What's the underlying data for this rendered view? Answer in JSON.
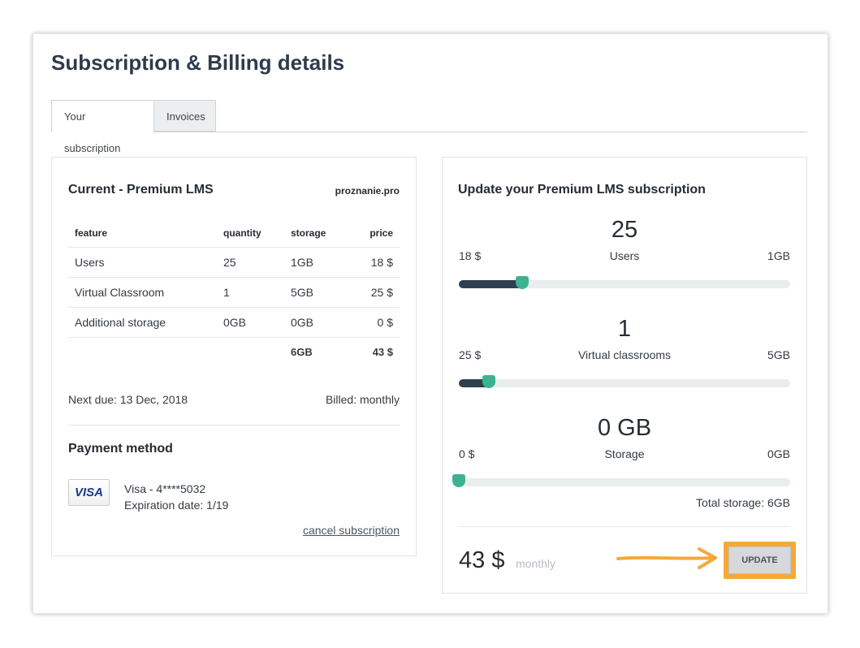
{
  "page": {
    "title": "Subscription & Billing details"
  },
  "tabs": [
    {
      "label": "Your subscription",
      "active": true
    },
    {
      "label": "Invoices",
      "active": false
    }
  ],
  "current": {
    "title": "Current - Premium LMS",
    "domain": "proznanie.pro",
    "columns": [
      "feature",
      "quantity",
      "storage",
      "price"
    ],
    "rows": [
      {
        "feature": "Users",
        "quantity": "25",
        "storage": "1GB",
        "price": "18 $"
      },
      {
        "feature": "Virtual Classroom",
        "quantity": "1",
        "storage": "5GB",
        "price": "25 $"
      },
      {
        "feature": "Additional storage",
        "quantity": "0GB",
        "storage": "0GB",
        "price": "0 $"
      }
    ],
    "total": {
      "storage": "6GB",
      "price": "43 $"
    },
    "next_due": "Next due: 13 Dec, 2018",
    "billed": "Billed: monthly"
  },
  "payment": {
    "title": "Payment method",
    "card_brand": "VISA",
    "card_line": "Visa - 4****5032",
    "expiration": "Expiration date: 1/19",
    "cancel_label": "cancel subscription"
  },
  "update": {
    "title": "Update your Premium LMS subscription",
    "sliders": [
      {
        "value": "25",
        "left": "18 $",
        "label": "Users",
        "right": "1GB",
        "level": 0.19
      },
      {
        "value": "1",
        "left": "25 $",
        "label": "Virtual classrooms",
        "right": "5GB",
        "level": 0.09
      },
      {
        "value": "0 GB",
        "left": "0 $",
        "label": "Storage",
        "right": "0GB",
        "level": 0.0
      }
    ],
    "total_storage": "Total storage: 6GB",
    "price": "43 $",
    "period": "monthly",
    "button_label": "UPDATE"
  },
  "colors": {
    "accent": "#3bb391",
    "slider_fill": "#2f3f52",
    "highlight": "#f5a83a"
  }
}
